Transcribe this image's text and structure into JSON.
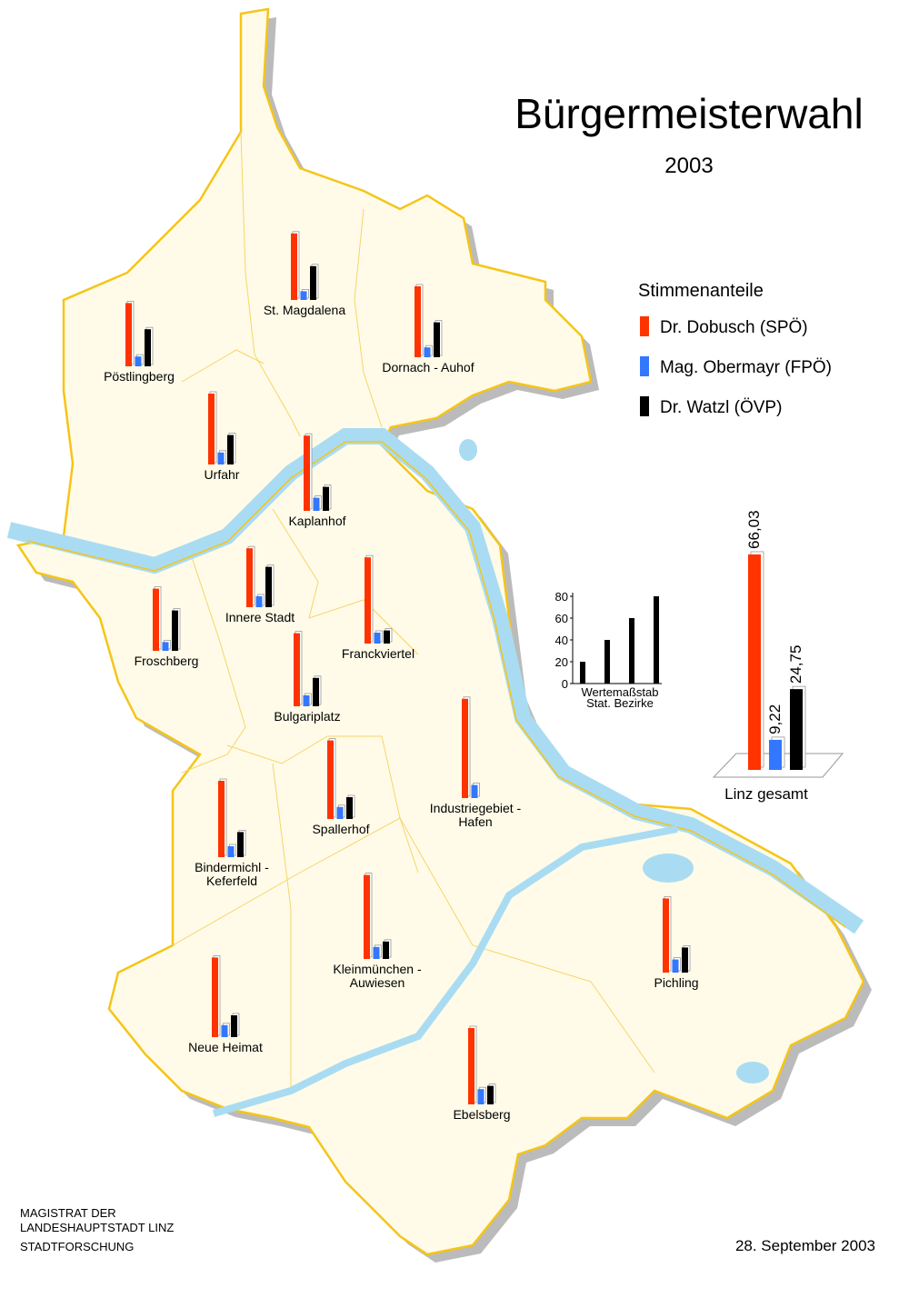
{
  "title": "Bürgermeisterwahl",
  "subtitle": "2003",
  "legend": {
    "title": "Stimmenanteile"
  },
  "parties": [
    {
      "name": "Dr. Dobusch (SPÖ)",
      "color": "#ff3300"
    },
    {
      "name": "Mag. Obermayr (FPÖ)",
      "color": "#3377ff"
    },
    {
      "name": "Dr. Watzl (ÖVP)",
      "color": "#000000"
    }
  ],
  "districts": [
    {
      "label": [
        "St. Magdalena"
      ],
      "values": [
        61,
        8,
        31
      ]
    },
    {
      "label": [
        "Pöstlingberg"
      ],
      "values": [
        58,
        9,
        34
      ]
    },
    {
      "label": [
        "Dornach - Auhof"
      ],
      "values": [
        65,
        9,
        32
      ]
    },
    {
      "label": [
        "Urfahr"
      ],
      "values": [
        65,
        11,
        27
      ]
    },
    {
      "label": [
        "Kaplanhof"
      ],
      "values": [
        69,
        12,
        22
      ]
    },
    {
      "label": [
        "Innere Stadt"
      ],
      "values": [
        54,
        10,
        37
      ]
    },
    {
      "label": [
        "Franckviertel"
      ],
      "values": [
        79,
        10,
        12
      ]
    },
    {
      "label": [
        "Froschberg"
      ],
      "values": [
        57,
        8,
        37
      ]
    },
    {
      "label": [
        "Bulgariplatz"
      ],
      "values": [
        67,
        10,
        26
      ]
    },
    {
      "label": [
        "Industriegebiet -",
        "Hafen"
      ],
      "values": [
        91,
        12,
        0
      ]
    },
    {
      "label": [
        "Spallerhof"
      ],
      "values": [
        72,
        11,
        20
      ]
    },
    {
      "label": [
        "Bindermichl -",
        "Keferfeld"
      ],
      "values": [
        70,
        10,
        23
      ]
    },
    {
      "label": [
        "Kleinmünchen -",
        "Auwiesen"
      ],
      "values": [
        77,
        11,
        16
      ]
    },
    {
      "label": [
        "Pichling"
      ],
      "values": [
        68,
        12,
        23
      ]
    },
    {
      "label": [
        "Neue Heimat"
      ],
      "values": [
        73,
        11,
        20
      ]
    },
    {
      "label": [
        "Ebelsberg"
      ],
      "values": [
        70,
        14,
        17
      ]
    }
  ],
  "scale": {
    "type": "bar",
    "label": "Wertemaßstab",
    "sublabel": "Stat. Bezirke",
    "values": [
      20,
      40,
      60,
      80
    ],
    "ylim": [
      0,
      80
    ],
    "yticks": [
      0,
      20,
      40,
      60,
      80
    ]
  },
  "total": {
    "type": "bar",
    "label": "Linz gesamt",
    "values": [
      66.03,
      9.22,
      24.75
    ],
    "value_labels": [
      "66,03",
      "9,22",
      "24,75"
    ]
  },
  "footer": {
    "org": [
      "MAGISTRAT DER",
      "LANDESHAUPTSTADT LINZ",
      "STADTFORSCHUNG"
    ],
    "date": "28. September 2003"
  }
}
